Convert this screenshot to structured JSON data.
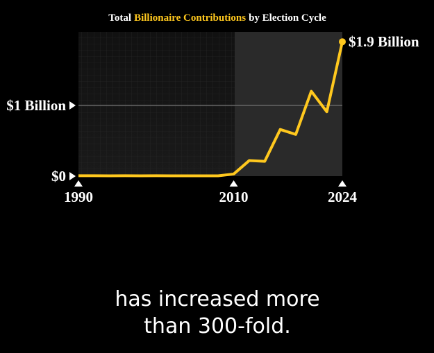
{
  "chart_data": {
    "type": "line",
    "title": [
      "Total",
      "Billionaire Contributions",
      "by Election Cycle"
    ],
    "title_highlight_color": "#ffc81e",
    "x": [
      1990,
      1992,
      1994,
      1996,
      1998,
      2000,
      2002,
      2004,
      2006,
      2008,
      2010,
      2012,
      2014,
      2016,
      2018,
      2020,
      2022,
      2024
    ],
    "series": [
      {
        "name": "Total Billionaire Contributions",
        "color": "#ffc81e",
        "values": [
          0.006,
          0.006,
          0.005,
          0.006,
          0.005,
          0.006,
          0.005,
          0.005,
          0.005,
          0.005,
          0.03,
          0.22,
          0.21,
          0.66,
          0.59,
          1.2,
          0.91,
          1.9
        ],
        "value_labels": [
          null,
          null,
          null,
          null,
          null,
          null,
          null,
          null,
          null,
          null,
          null,
          null,
          null,
          null,
          null,
          null,
          null,
          "$1.9 Billion"
        ]
      }
    ],
    "xlim": [
      1990,
      2024
    ],
    "xticks": [
      1990,
      2010,
      2024
    ],
    "ylim": [
      0,
      2
    ],
    "yticks": [
      {
        "value": 0,
        "label": "$0"
      },
      {
        "value": 1,
        "label": "$1 Billion"
      }
    ],
    "grid": true,
    "caption_lines": [
      "has increased more",
      "than 300-fold."
    ]
  }
}
